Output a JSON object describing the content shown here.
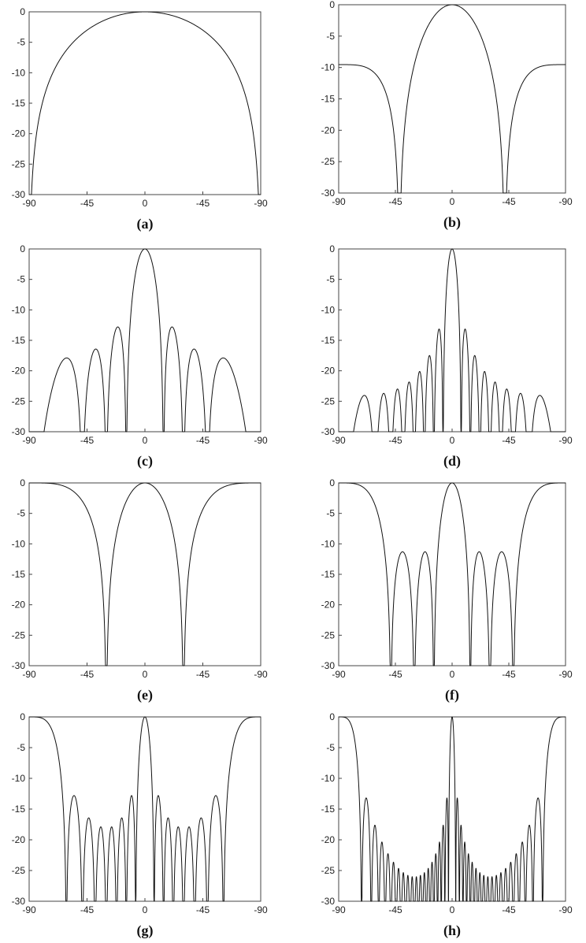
{
  "chart_data": [
    {
      "type": "line",
      "panel_label": "(a)",
      "x_ticks": [
        "-90",
        "-45",
        "0",
        "-45",
        "-90"
      ],
      "y_ticks": [
        "0",
        "-5",
        "-10",
        "-15",
        "-20",
        "-25",
        "-30"
      ],
      "xlim": [
        -90,
        90
      ],
      "ylim": [
        -30,
        0
      ],
      "grid": false,
      "series": [
        {
          "kind": "pattern",
          "N": 1,
          "d": 0.5,
          "floor": -30
        }
      ]
    },
    {
      "type": "line",
      "panel_label": "(b)",
      "x_ticks": [
        "-90",
        "-45",
        "0",
        "-45",
        "-90"
      ],
      "y_ticks": [
        "0",
        "-5",
        "-10",
        "-15",
        "-20",
        "-25",
        "-30"
      ],
      "xlim": [
        -90,
        90
      ],
      "ylim": [
        -30,
        0
      ],
      "grid": false,
      "series": [
        {
          "kind": "pattern",
          "N": 3,
          "d": 0.5,
          "floor": -30
        }
      ]
    },
    {
      "type": "line",
      "panel_label": "(c)",
      "x_ticks": [
        "-90",
        "-45",
        "0",
        "-45",
        "-90"
      ],
      "y_ticks": [
        "0",
        "-5",
        "-10",
        "-15",
        "-20",
        "-25",
        "-30"
      ],
      "xlim": [
        -90,
        90
      ],
      "ylim": [
        -30,
        0
      ],
      "grid": false,
      "series": [
        {
          "kind": "pattern",
          "N": 8,
          "d": 0.5,
          "floor": -30
        }
      ]
    },
    {
      "type": "line",
      "panel_label": "(d)",
      "x_ticks": [
        "-90",
        "-45",
        "0",
        "-45",
        "-90"
      ],
      "y_ticks": [
        "0",
        "-5",
        "-10",
        "-15",
        "-20",
        "-25",
        "-30"
      ],
      "xlim": [
        -90,
        90
      ],
      "ylim": [
        -30,
        0
      ],
      "grid": false,
      "series": [
        {
          "kind": "pattern",
          "N": 16,
          "d": 0.5,
          "floor": -30
        }
      ]
    },
    {
      "type": "line",
      "panel_label": "(e)",
      "x_ticks": [
        "-90",
        "-45",
        "0",
        "-45",
        "-90"
      ],
      "y_ticks": [
        "0",
        "-5",
        "-10",
        "-15",
        "-20",
        "-25",
        "-30"
      ],
      "xlim": [
        -90,
        90
      ],
      "ylim": [
        -30,
        0
      ],
      "grid": false,
      "series": [
        {
          "kind": "pattern",
          "N": 2,
          "d": 1,
          "floor": -30
        }
      ]
    },
    {
      "type": "line",
      "panel_label": "(f)",
      "x_ticks": [
        "-90",
        "-45",
        "0",
        "-45",
        "-90"
      ],
      "y_ticks": [
        "0",
        "-5",
        "-10",
        "-15",
        "-20",
        "-25",
        "-30"
      ],
      "xlim": [
        -90,
        90
      ],
      "ylim": [
        -30,
        0
      ],
      "grid": false,
      "series": [
        {
          "kind": "pattern",
          "N": 4,
          "d": 1,
          "floor": -30
        }
      ]
    },
    {
      "type": "line",
      "panel_label": "(g)",
      "x_ticks": [
        "-90",
        "-45",
        "0",
        "-45",
        "-90"
      ],
      "y_ticks": [
        "0",
        "-5",
        "-10",
        "-15",
        "-20",
        "-25",
        "-30"
      ],
      "xlim": [
        -90,
        90
      ],
      "ylim": [
        -30,
        0
      ],
      "grid": false,
      "series": [
        {
          "kind": "pattern",
          "N": 8,
          "d": 1,
          "floor": -30
        }
      ]
    },
    {
      "type": "line",
      "panel_label": "(h)",
      "x_ticks": [
        "-90",
        "-45",
        "0",
        "-45",
        "-90"
      ],
      "y_ticks": [
        "0",
        "-5",
        "-10",
        "-15",
        "-20",
        "-25",
        "-30"
      ],
      "xlim": [
        -90,
        90
      ],
      "ylim": [
        -30,
        0
      ],
      "grid": false,
      "series": [
        {
          "kind": "pattern",
          "N": 20,
          "d": 1,
          "floor": -30
        }
      ]
    }
  ]
}
